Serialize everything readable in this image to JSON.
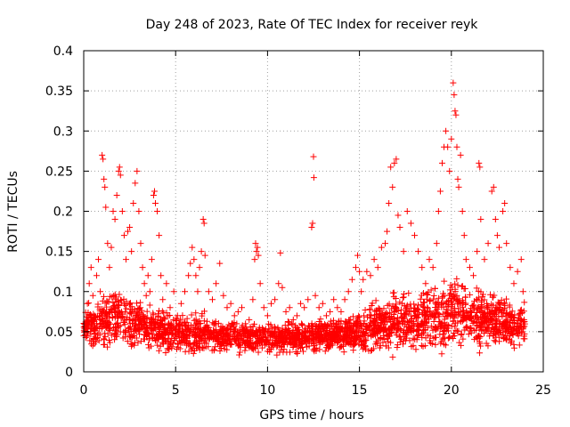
{
  "chart_data": {
    "type": "scatter",
    "title": "Day 248 of 2023, Rate Of TEC Index for receiver reyk",
    "xlabel": "GPS time / hours",
    "ylabel": "ROTI / TECUs",
    "xlim": [
      0,
      25
    ],
    "ylim": [
      0,
      0.4
    ],
    "x_ticks": [
      0,
      5,
      10,
      15,
      20,
      25
    ],
    "x_tick_labels": [
      "0",
      "5",
      "10",
      "15",
      "20",
      "25"
    ],
    "y_ticks": [
      0,
      0.05,
      0.1,
      0.15,
      0.2,
      0.25,
      0.3,
      0.35,
      0.4
    ],
    "y_tick_labels": [
      "0",
      "0.05",
      "0.1",
      "0.15",
      "0.2",
      "0.25",
      "0.3",
      "0.35",
      "0.4"
    ],
    "grid": true,
    "marker": "plus",
    "series": [
      {
        "name": "ROTI",
        "color": "#ff0000",
        "points": [
          [
            0.0,
            0.045
          ],
          [
            0.1,
            0.062
          ],
          [
            0.2,
            0.085
          ],
          [
            0.3,
            0.11
          ],
          [
            0.4,
            0.13
          ],
          [
            0.5,
            0.095
          ],
          [
            0.6,
            0.07
          ],
          [
            0.7,
            0.12
          ],
          [
            0.8,
            0.14
          ],
          [
            0.9,
            0.1
          ],
          [
            1.0,
            0.27
          ],
          [
            1.05,
            0.265
          ],
          [
            1.1,
            0.24
          ],
          [
            1.15,
            0.23
          ],
          [
            1.2,
            0.205
          ],
          [
            1.3,
            0.16
          ],
          [
            1.4,
            0.13
          ],
          [
            1.5,
            0.155
          ],
          [
            1.6,
            0.2
          ],
          [
            1.7,
            0.19
          ],
          [
            1.8,
            0.22
          ],
          [
            1.9,
            0.25
          ],
          [
            1.95,
            0.255
          ],
          [
            2.0,
            0.245
          ],
          [
            2.1,
            0.2
          ],
          [
            2.2,
            0.17
          ],
          [
            2.3,
            0.14
          ],
          [
            2.4,
            0.175
          ],
          [
            2.5,
            0.18
          ],
          [
            2.6,
            0.15
          ],
          [
            2.7,
            0.21
          ],
          [
            2.8,
            0.235
          ],
          [
            2.9,
            0.25
          ],
          [
            3.0,
            0.2
          ],
          [
            3.1,
            0.16
          ],
          [
            3.2,
            0.13
          ],
          [
            3.3,
            0.11
          ],
          [
            3.4,
            0.095
          ],
          [
            3.5,
            0.12
          ],
          [
            3.6,
            0.1
          ],
          [
            3.7,
            0.14
          ],
          [
            3.8,
            0.22
          ],
          [
            3.85,
            0.225
          ],
          [
            3.9,
            0.21
          ],
          [
            4.0,
            0.2
          ],
          [
            4.1,
            0.17
          ],
          [
            4.2,
            0.12
          ],
          [
            4.3,
            0.09
          ],
          [
            4.5,
            0.11
          ],
          [
            4.7,
            0.08
          ],
          [
            4.9,
            0.1
          ],
          [
            5.1,
            0.07
          ],
          [
            5.3,
            0.085
          ],
          [
            5.5,
            0.1
          ],
          [
            5.7,
            0.12
          ],
          [
            5.8,
            0.135
          ],
          [
            5.9,
            0.155
          ],
          [
            6.0,
            0.14
          ],
          [
            6.1,
            0.12
          ],
          [
            6.2,
            0.1
          ],
          [
            6.3,
            0.13
          ],
          [
            6.4,
            0.15
          ],
          [
            6.5,
            0.19
          ],
          [
            6.55,
            0.185
          ],
          [
            6.6,
            0.145
          ],
          [
            6.8,
            0.1
          ],
          [
            7.0,
            0.09
          ],
          [
            7.2,
            0.11
          ],
          [
            7.4,
            0.135
          ],
          [
            7.6,
            0.095
          ],
          [
            7.8,
            0.08
          ],
          [
            8.0,
            0.085
          ],
          [
            8.2,
            0.07
          ],
          [
            8.4,
            0.075
          ],
          [
            8.6,
            0.08
          ],
          [
            8.8,
            0.06
          ],
          [
            9.0,
            0.065
          ],
          [
            9.2,
            0.09
          ],
          [
            9.3,
            0.14
          ],
          [
            9.35,
            0.16
          ],
          [
            9.4,
            0.15
          ],
          [
            9.45,
            0.155
          ],
          [
            9.5,
            0.145
          ],
          [
            9.6,
            0.11
          ],
          [
            9.8,
            0.08
          ],
          [
            10.0,
            0.07
          ],
          [
            10.2,
            0.085
          ],
          [
            10.4,
            0.09
          ],
          [
            10.6,
            0.11
          ],
          [
            10.7,
            0.148
          ],
          [
            10.8,
            0.105
          ],
          [
            11.0,
            0.075
          ],
          [
            11.2,
            0.08
          ],
          [
            11.4,
            0.065
          ],
          [
            11.6,
            0.07
          ],
          [
            11.8,
            0.085
          ],
          [
            12.0,
            0.08
          ],
          [
            12.2,
            0.09
          ],
          [
            12.4,
            0.18
          ],
          [
            12.45,
            0.185
          ],
          [
            12.5,
            0.268
          ],
          [
            12.52,
            0.242
          ],
          [
            12.6,
            0.095
          ],
          [
            12.8,
            0.08
          ],
          [
            13.0,
            0.085
          ],
          [
            13.2,
            0.07
          ],
          [
            13.4,
            0.075
          ],
          [
            13.6,
            0.09
          ],
          [
            13.8,
            0.08
          ],
          [
            14.0,
            0.075
          ],
          [
            14.2,
            0.09
          ],
          [
            14.4,
            0.1
          ],
          [
            14.6,
            0.115
          ],
          [
            14.8,
            0.13
          ],
          [
            14.9,
            0.145
          ],
          [
            15.0,
            0.125
          ],
          [
            15.1,
            0.1
          ],
          [
            15.2,
            0.115
          ],
          [
            15.4,
            0.125
          ],
          [
            15.6,
            0.12
          ],
          [
            15.8,
            0.14
          ],
          [
            16.0,
            0.13
          ],
          [
            16.2,
            0.155
          ],
          [
            16.4,
            0.16
          ],
          [
            16.5,
            0.175
          ],
          [
            16.6,
            0.21
          ],
          [
            16.7,
            0.255
          ],
          [
            16.8,
            0.23
          ],
          [
            16.9,
            0.26
          ],
          [
            17.0,
            0.265
          ],
          [
            17.1,
            0.195
          ],
          [
            17.2,
            0.18
          ],
          [
            17.4,
            0.15
          ],
          [
            17.6,
            0.2
          ],
          [
            17.8,
            0.185
          ],
          [
            18.0,
            0.17
          ],
          [
            18.2,
            0.15
          ],
          [
            18.4,
            0.13
          ],
          [
            18.6,
            0.11
          ],
          [
            18.8,
            0.14
          ],
          [
            19.0,
            0.13
          ],
          [
            19.2,
            0.16
          ],
          [
            19.3,
            0.2
          ],
          [
            19.4,
            0.225
          ],
          [
            19.5,
            0.26
          ],
          [
            19.6,
            0.28
          ],
          [
            19.7,
            0.3
          ],
          [
            19.8,
            0.28
          ],
          [
            19.9,
            0.25
          ],
          [
            20.0,
            0.29
          ],
          [
            20.1,
            0.36
          ],
          [
            20.15,
            0.345
          ],
          [
            20.2,
            0.325
          ],
          [
            20.25,
            0.32
          ],
          [
            20.3,
            0.28
          ],
          [
            20.35,
            0.24
          ],
          [
            20.4,
            0.23
          ],
          [
            20.5,
            0.27
          ],
          [
            20.6,
            0.2
          ],
          [
            20.7,
            0.17
          ],
          [
            20.8,
            0.14
          ],
          [
            21.0,
            0.13
          ],
          [
            21.2,
            0.12
          ],
          [
            21.4,
            0.15
          ],
          [
            21.5,
            0.26
          ],
          [
            21.55,
            0.255
          ],
          [
            21.6,
            0.19
          ],
          [
            21.8,
            0.14
          ],
          [
            22.0,
            0.16
          ],
          [
            22.2,
            0.225
          ],
          [
            22.3,
            0.23
          ],
          [
            22.4,
            0.19
          ],
          [
            22.5,
            0.17
          ],
          [
            22.6,
            0.155
          ],
          [
            22.8,
            0.2
          ],
          [
            22.9,
            0.21
          ],
          [
            23.0,
            0.16
          ],
          [
            23.2,
            0.13
          ],
          [
            23.4,
            0.11
          ],
          [
            23.6,
            0.125
          ],
          [
            23.8,
            0.14
          ],
          [
            23.9,
            0.1
          ]
        ]
      }
    ],
    "dense_band": {
      "description_note": "dense low-value cloud of points across the whole day",
      "x_range": [
        0,
        24
      ],
      "envelope_hours": [
        0,
        1,
        2,
        3,
        4,
        5,
        6,
        7,
        8,
        9,
        10,
        11,
        12,
        13,
        14,
        15,
        16,
        17,
        18,
        19,
        20,
        21,
        22,
        23,
        24
      ],
      "envelope_low": [
        0.025,
        0.02,
        0.02,
        0.02,
        0.02,
        0.02,
        0.015,
        0.02,
        0.02,
        0.02,
        0.015,
        0.02,
        0.02,
        0.02,
        0.02,
        0.015,
        0.015,
        0.015,
        0.02,
        0.015,
        0.015,
        0.02,
        0.02,
        0.02,
        0.025
      ],
      "envelope_high": [
        0.075,
        0.095,
        0.1,
        0.09,
        0.075,
        0.07,
        0.075,
        0.065,
        0.06,
        0.06,
        0.06,
        0.06,
        0.06,
        0.065,
        0.065,
        0.075,
        0.09,
        0.1,
        0.095,
        0.1,
        0.12,
        0.105,
        0.095,
        0.09,
        0.085
      ],
      "count": 2600
    }
  }
}
